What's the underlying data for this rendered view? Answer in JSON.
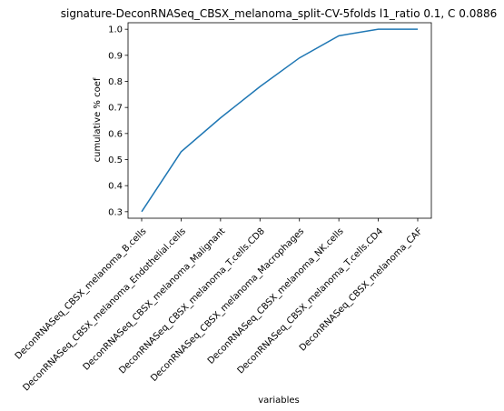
{
  "chart_data": {
    "type": "line",
    "title": "signature-DeconRNASeq_CBSX_melanoma_split-CV-5folds l1_ratio 0.1, C 0.0886",
    "xlabel": "variables",
    "ylabel": "cumulative % coef",
    "categories": [
      "DeconRNASeq_CBSX_melanoma_B.cells",
      "DeconRNASeq_CBSX_melanoma_Endothelial.cells",
      "DeconRNASeq_CBSX_melanoma_Malignant",
      "DeconRNASeq_CBSX_melanoma_T.cells.CD8",
      "DeconRNASeq_CBSX_melanoma_Macrophages",
      "DeconRNASeq_CBSX_melanoma_NK.cells",
      "DeconRNASeq_CBSX_melanoma_T.cells.CD4",
      "DeconRNASeq_CBSX_melanoma_CAF"
    ],
    "values": [
      0.3,
      0.53,
      0.66,
      0.78,
      0.89,
      0.975,
      1.0,
      1.0
    ],
    "yticks": [
      "0.3",
      "0.4",
      "0.5",
      "0.6",
      "0.7",
      "0.8",
      "0.9",
      "1.0"
    ],
    "ylim": [
      0.275,
      1.025
    ],
    "line_color": "#1f77b4",
    "grid": false
  }
}
